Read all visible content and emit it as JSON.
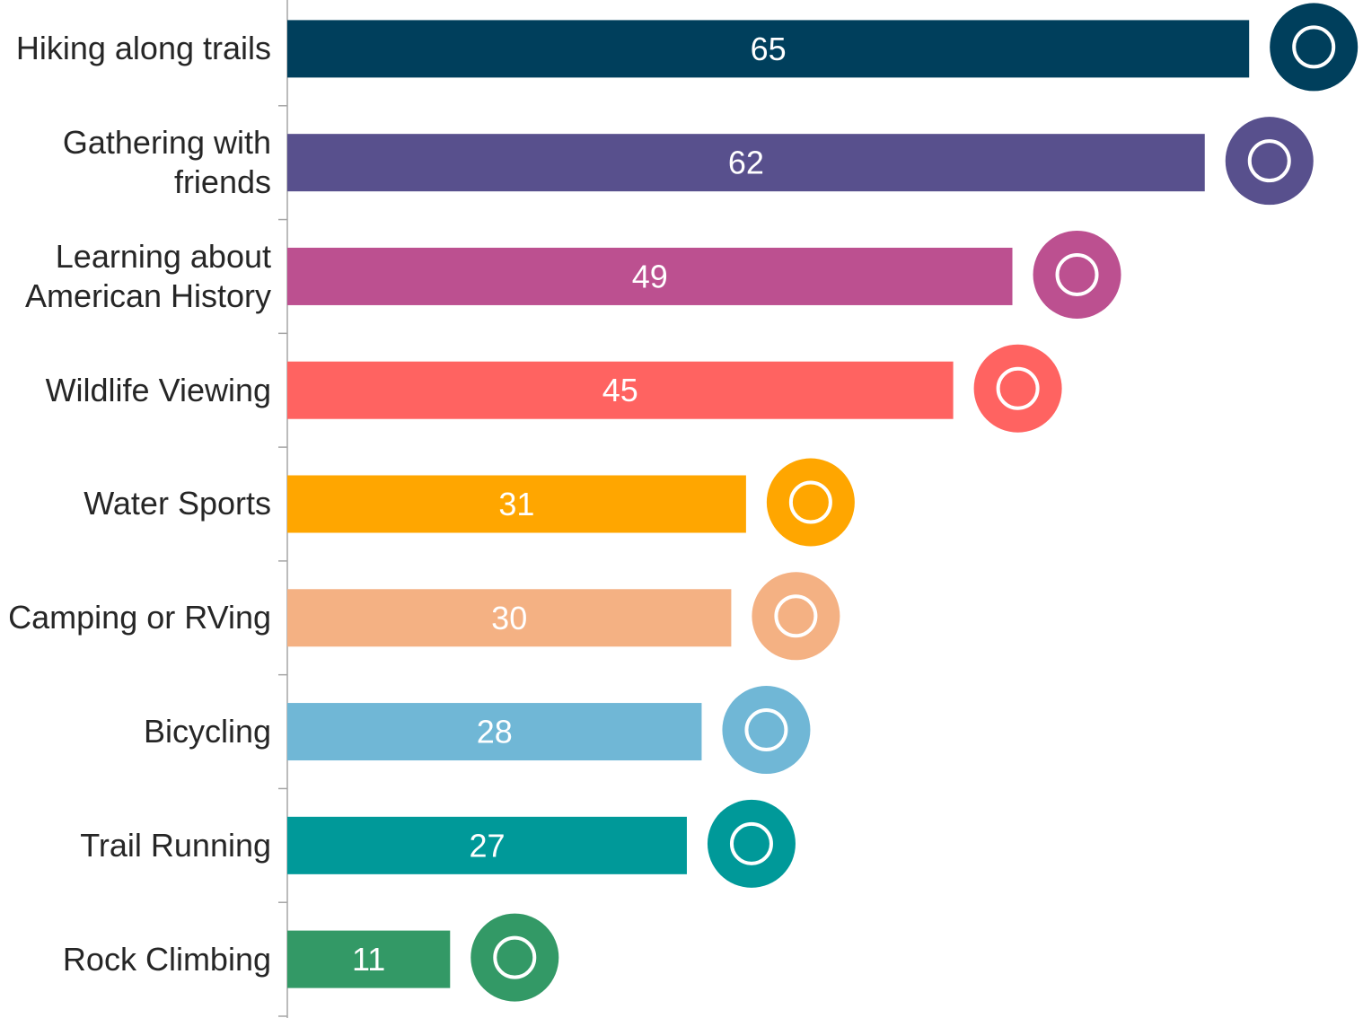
{
  "chart_data": {
    "type": "bar",
    "orientation": "horizontal",
    "categories": [
      "Hiking along trails",
      "Gathering with friends",
      "Learning about American History",
      "Wildlife Viewing",
      "Water Sports",
      "Camping or RVing",
      "Bicycling",
      "Trail Running",
      "Rock Climbing"
    ],
    "values": [
      65,
      62,
      49,
      45,
      31,
      30,
      28,
      27,
      11
    ],
    "colors": [
      "#003f5c",
      "#58508d",
      "#bc5090",
      "#ff6361",
      "#ffa600",
      "#f4b183",
      "#70b7d6",
      "#009999",
      "#339966"
    ]
  }
}
